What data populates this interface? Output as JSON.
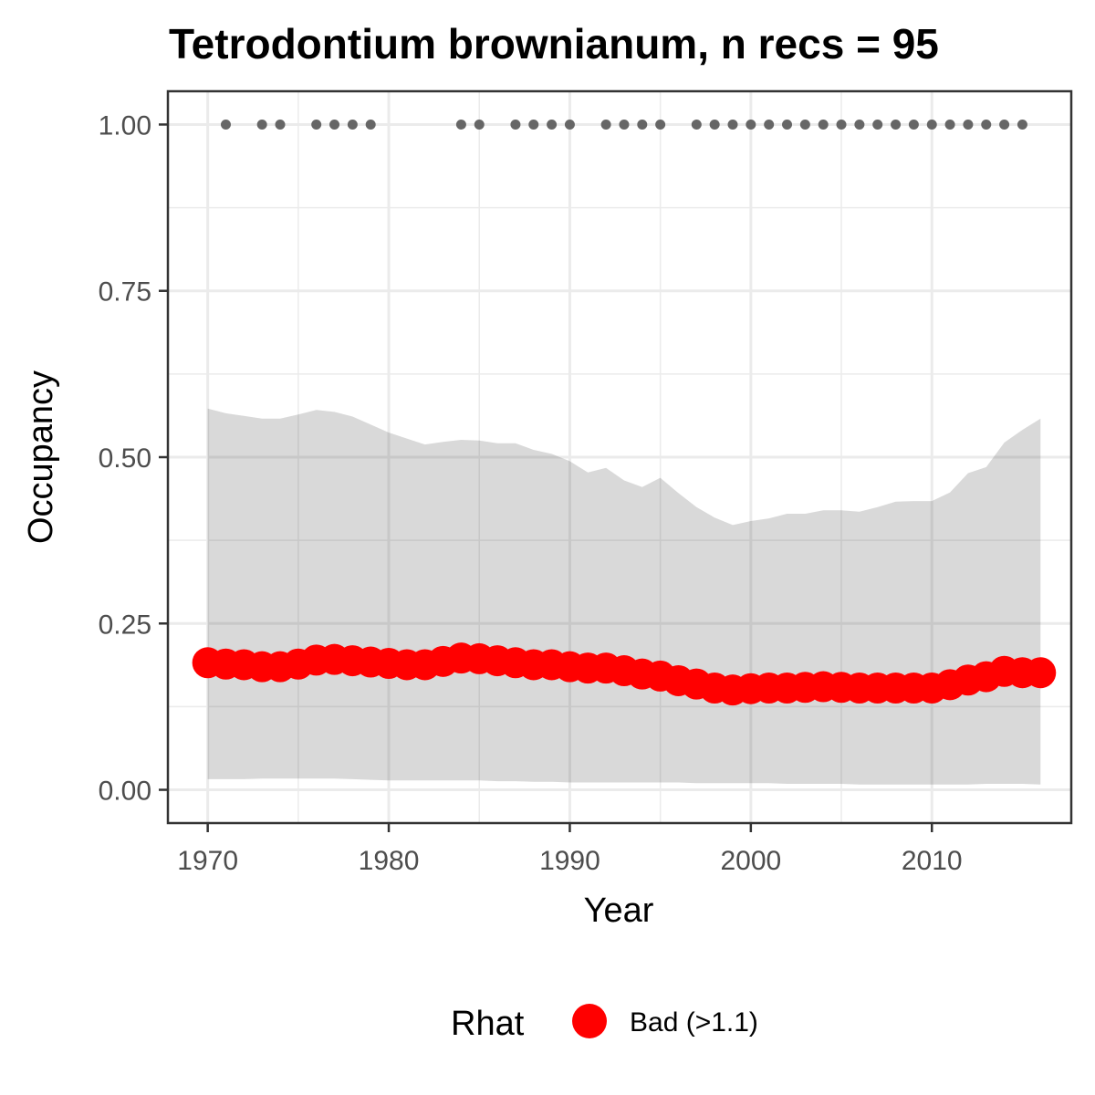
{
  "chart_data": {
    "type": "line",
    "title": "Tetrodontium brownianum, n recs = 95",
    "xlabel": "Year",
    "ylabel": "Occupancy",
    "xlim": [
      1967.8,
      2017.7
    ],
    "ylim": [
      -0.05,
      1.05
    ],
    "x_ticks": [
      1970,
      1980,
      1990,
      2000,
      2010
    ],
    "x_tick_labels": [
      "1970",
      "1980",
      "1990",
      "2000",
      "2010"
    ],
    "y_ticks": [
      0,
      0.25,
      0.5,
      0.75,
      1.0
    ],
    "y_tick_labels": [
      "0.00",
      "0.25",
      "0.50",
      "0.75",
      "1.00"
    ],
    "grid": true,
    "legend": {
      "title": "Rhat",
      "position": "bottom",
      "entries": [
        {
          "label": "Bad (>1.1)",
          "color": "#ff0000"
        }
      ]
    },
    "colors": {
      "series": "#ff0000",
      "band": "#d9d9d9",
      "records": "#666666",
      "grid": "#ebebeb",
      "panel_border": "#333333"
    },
    "years": [
      1970,
      1971,
      1972,
      1973,
      1974,
      1975,
      1976,
      1977,
      1978,
      1979,
      1980,
      1981,
      1982,
      1983,
      1984,
      1985,
      1986,
      1987,
      1988,
      1989,
      1990,
      1991,
      1992,
      1993,
      1994,
      1995,
      1996,
      1997,
      1998,
      1999,
      2000,
      2001,
      2002,
      2003,
      2004,
      2005,
      2006,
      2007,
      2008,
      2009,
      2010,
      2011,
      2012,
      2013,
      2014,
      2015,
      2016
    ],
    "series": [
      {
        "name": "Occupancy",
        "values": [
          0.191,
          0.189,
          0.188,
          0.185,
          0.185,
          0.189,
          0.195,
          0.196,
          0.194,
          0.192,
          0.19,
          0.188,
          0.188,
          0.193,
          0.198,
          0.197,
          0.194,
          0.191,
          0.188,
          0.188,
          0.185,
          0.183,
          0.183,
          0.179,
          0.174,
          0.171,
          0.164,
          0.159,
          0.153,
          0.15,
          0.152,
          0.153,
          0.153,
          0.154,
          0.155,
          0.154,
          0.153,
          0.153,
          0.153,
          0.153,
          0.153,
          0.158,
          0.165,
          0.17,
          0.178,
          0.176,
          0.176
        ]
      }
    ],
    "ci_upper": [
      0.573,
      0.566,
      0.562,
      0.558,
      0.558,
      0.564,
      0.571,
      0.568,
      0.561,
      0.549,
      0.537,
      0.528,
      0.519,
      0.523,
      0.526,
      0.525,
      0.521,
      0.521,
      0.511,
      0.505,
      0.494,
      0.477,
      0.484,
      0.465,
      0.455,
      0.469,
      0.446,
      0.425,
      0.409,
      0.398,
      0.404,
      0.408,
      0.415,
      0.415,
      0.42,
      0.42,
      0.418,
      0.425,
      0.433,
      0.434,
      0.434,
      0.447,
      0.476,
      0.485,
      0.522,
      0.541,
      0.558
    ],
    "ci_lower": [
      0.016,
      0.016,
      0.016,
      0.017,
      0.017,
      0.017,
      0.017,
      0.017,
      0.016,
      0.015,
      0.014,
      0.014,
      0.014,
      0.014,
      0.014,
      0.014,
      0.013,
      0.013,
      0.012,
      0.012,
      0.011,
      0.011,
      0.011,
      0.011,
      0.011,
      0.011,
      0.011,
      0.01,
      0.01,
      0.01,
      0.01,
      0.01,
      0.009,
      0.009,
      0.009,
      0.009,
      0.008,
      0.008,
      0.008,
      0.008,
      0.008,
      0.008,
      0.008,
      0.009,
      0.009,
      0.009,
      0.008
    ],
    "record_years": [
      1971,
      1973,
      1974,
      1976,
      1977,
      1978,
      1979,
      1984,
      1985,
      1987,
      1988,
      1989,
      1990,
      1992,
      1993,
      1994,
      1995,
      1997,
      1998,
      1999,
      2000,
      2001,
      2002,
      2003,
      2004,
      2005,
      2006,
      2007,
      2008,
      2009,
      2010,
      2011,
      2012,
      2013,
      2014,
      2015
    ],
    "record_value": 1.0
  }
}
